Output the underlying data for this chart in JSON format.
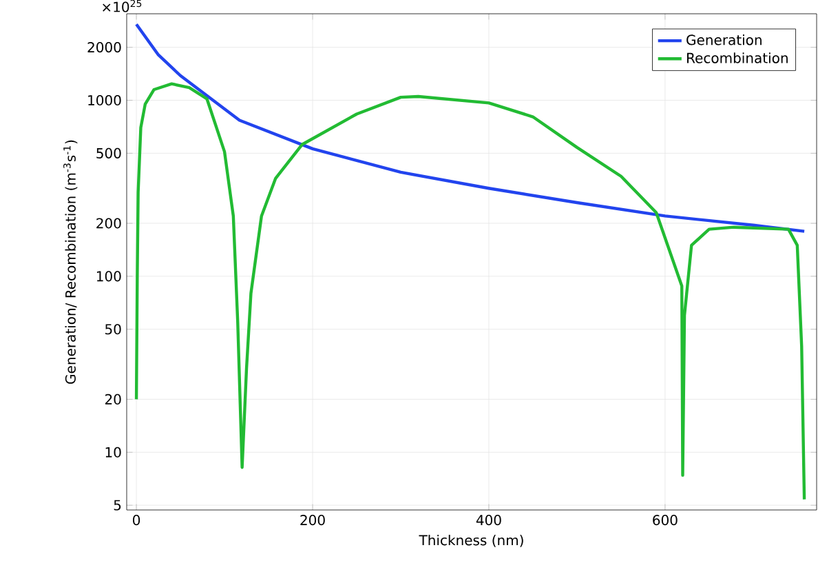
{
  "chart_data": {
    "type": "line",
    "xlabel": "Thickness (nm)",
    "ylabel": "Generation/ Recombination (m$^{-3}$s$^{-1}$)",
    "annotations": [
      "×10$^{25}$"
    ],
    "log": "y",
    "grid": true,
    "legend": "top right",
    "marker": "none",
    "line_style": "solid",
    "xlim": [
      -11,
      772
    ],
    "ylim": [
      4.7,
      3100
    ],
    "xticks": [
      0,
      200,
      400,
      600
    ],
    "yticks": [
      5,
      10,
      20,
      50,
      100,
      200,
      500,
      1000,
      2000
    ],
    "series": [
      {
        "name": "Generation",
        "color": "#2244ee",
        "x": [
          0,
          25,
          50,
          117,
          200,
          300,
          400,
          500,
          600,
          700,
          758
        ],
        "values": [
          2700,
          1810,
          1380,
          770,
          530,
          390,
          316,
          262,
          220,
          195,
          180
        ]
      },
      {
        "name": "Recombination",
        "color": "#22bb33",
        "x": [
          0,
          1,
          2,
          5,
          10,
          20,
          40,
          60,
          80,
          100,
          110,
          115,
          120,
          125,
          130,
          142,
          158,
          188,
          250,
          300,
          320,
          400,
          450,
          500,
          550,
          590,
          619,
          620,
          622,
          630,
          650,
          678,
          740,
          750,
          755,
          758
        ],
        "values": [
          20,
          100,
          300,
          700,
          950,
          1150,
          1240,
          1180,
          1020,
          510,
          220,
          55,
          8.2,
          30,
          80,
          220,
          360,
          560,
          835,
          1040,
          1050,
          965,
          805,
          540,
          370,
          230,
          88,
          7.4,
          60,
          150,
          185,
          190,
          185,
          150,
          40,
          5.4
        ]
      }
    ]
  }
}
